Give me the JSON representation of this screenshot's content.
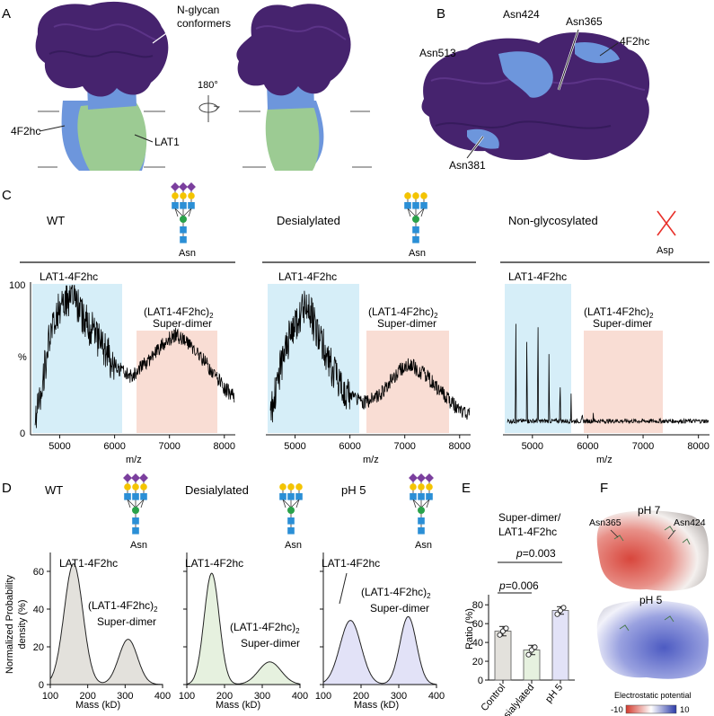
{
  "panel_letters": {
    "A": "A",
    "B": "B",
    "C": "C",
    "D": "D",
    "E": "E",
    "F": "F"
  },
  "panel_a": {
    "glycan_label_1": "N-glycan",
    "glycan_label_2": "conformers",
    "rotation": "180°",
    "heavy_chain": "4F2hc",
    "light_chain": "LAT1"
  },
  "panel_b": {
    "asn424": "Asn424",
    "asn365": "Asn365",
    "asn513": "Asn513",
    "heavy_chain": "4F2hc",
    "asn381": "Asn381"
  },
  "panel_c": {
    "header_wt": "WT",
    "header_desialylated": "Desialylated",
    "header_nonglyco": "Non-glycosylated",
    "asn": "Asn",
    "asp": "Asp",
    "y_top": "100",
    "y_unit": "%",
    "y_zero": "0",
    "xlabel": "m/z",
    "monomer": "LAT1-4F2hc",
    "dimer_a": "(LAT1-4F2hc)",
    "dimer_sub": "2",
    "dimer_b": "Super-dimer",
    "ticks": [
      "5000",
      "6000",
      "7000",
      "8000"
    ]
  },
  "panel_d": {
    "header_wt": "WT",
    "header_desialylated": "Desialylated",
    "header_ph5": "pH 5",
    "asn": "Asn",
    "ylabel_1": "Normalized Probability",
    "ylabel_2": "density (%)",
    "xlabel": "Mass (kD)",
    "monomer": "LAT1-4F2hc",
    "dimer_a": "(LAT1-4F2hc)",
    "dimer_sub": "2",
    "dimer_b": "Super-dimer",
    "xticks": [
      "100",
      "200",
      "300",
      "400"
    ],
    "yticks": [
      "0",
      "20",
      "40",
      "60"
    ]
  },
  "panel_e": {
    "title_1": "Super-dimer/",
    "title_2": "LAT1-4F2hc",
    "ylabel": "Ratio (%)",
    "p_label": "p",
    "p1": "=0.006",
    "p2": "=0.003",
    "categories": [
      "Control",
      "Desialylated",
      "pH 5"
    ],
    "yticks": [
      "0",
      "20",
      "40",
      "60",
      "80"
    ]
  },
  "panel_f": {
    "ph7": "pH 7",
    "asn365": "Asn365",
    "asn424": "Asn424",
    "ph5": "pH 5",
    "legend_title": "Electrostatic potential",
    "legend_min": "-10",
    "legend_max": "10"
  },
  "colors": {
    "heavy": "#6d96dc",
    "light": "#9ccb93",
    "glycan": "#46236e",
    "monomer_band": "#d6eef8",
    "dimer_band": "#f9ddd4",
    "sialic": "#7b3f9e",
    "galactose": "#f4c400",
    "glcnac": "#2b8fd6",
    "mannose": "#2aa24a"
  },
  "chart_data": [
    {
      "type": "line",
      "panel": "C-WT",
      "x_range": [
        4500,
        8200
      ],
      "y_range": [
        0,
        100
      ],
      "x": [
        4550,
        4800,
        5000,
        5200,
        5400,
        5700,
        6000,
        6300,
        6600,
        6900,
        7100,
        7400,
        7700,
        8000,
        8150
      ],
      "y": [
        5,
        60,
        85,
        92,
        80,
        62,
        45,
        38,
        48,
        60,
        66,
        58,
        45,
        30,
        25
      ]
    },
    {
      "type": "line",
      "panel": "C-Desialylated",
      "x_range": [
        4500,
        8200
      ],
      "y_range": [
        0,
        100
      ],
      "x": [
        4550,
        4800,
        5000,
        5200,
        5400,
        5700,
        6000,
        6300,
        6600,
        6900,
        7100,
        7400,
        7700,
        8000,
        8150
      ],
      "y": [
        10,
        55,
        72,
        88,
        68,
        40,
        25,
        20,
        28,
        42,
        46,
        38,
        26,
        15,
        12
      ]
    },
    {
      "type": "line",
      "panel": "C-Non-glycosylated",
      "x_range": [
        4500,
        8200
      ],
      "y_range": [
        0,
        100
      ],
      "peaks_x": [
        4520,
        4700,
        4900,
        5100,
        5300,
        5500,
        5700,
        5900,
        6100,
        6300,
        6500,
        6700,
        6900,
        7100,
        7300
      ],
      "peaks_y": [
        98,
        85,
        80,
        92,
        62,
        45,
        28,
        20,
        14,
        12,
        10,
        9,
        8,
        7,
        6
      ],
      "baseline": 8
    },
    {
      "type": "area",
      "panel": "D-WT",
      "x_range": [
        100,
        400
      ],
      "y_range": [
        0,
        70
      ],
      "peaks": [
        {
          "center": 162,
          "height": 64,
          "width": 25
        },
        {
          "center": 308,
          "height": 24,
          "width": 25
        }
      ]
    },
    {
      "type": "area",
      "panel": "D-Desialylated",
      "x_range": [
        100,
        400
      ],
      "y_range": [
        0,
        70
      ],
      "peaks": [
        {
          "center": 166,
          "height": 59,
          "width": 20
        },
        {
          "center": 320,
          "height": 12,
          "width": 30
        }
      ]
    },
    {
      "type": "area",
      "panel": "D-pH 5",
      "x_range": [
        100,
        400
      ],
      "y_range": [
        0,
        70
      ],
      "peaks": [
        {
          "center": 172,
          "height": 34,
          "width": 28
        },
        {
          "center": 325,
          "height": 36,
          "width": 22
        }
      ]
    },
    {
      "type": "bar",
      "panel": "E",
      "categories": [
        "Control",
        "Desialylated",
        "pH 5"
      ],
      "values": [
        52,
        32,
        74
      ],
      "errors": [
        5,
        5,
        4
      ],
      "points": [
        [
          48,
          52,
          55
        ],
        [
          27,
          32,
          35
        ],
        [
          70,
          74,
          77
        ]
      ],
      "ylim": [
        0,
        85
      ],
      "bar_colors": [
        "#e3e1dc",
        "#e6f1df",
        "#e2e2f7"
      ]
    }
  ]
}
